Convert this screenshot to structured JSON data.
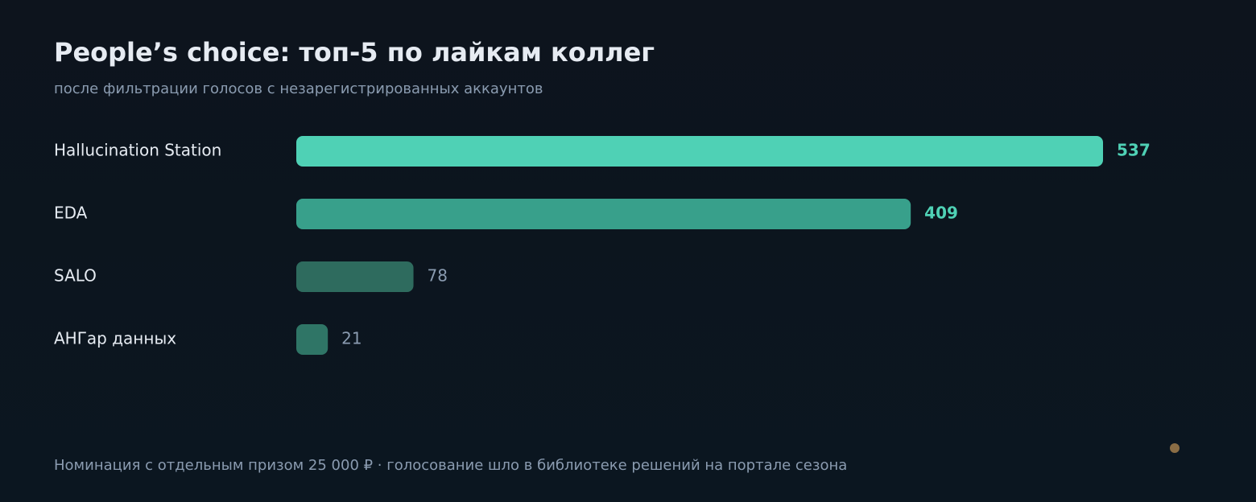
{
  "chart_data": {
    "type": "bar",
    "orientation": "horizontal",
    "title": "People’s choice: топ-5 по лайкам коллег",
    "subtitle": "после фильтрации голосов с незарегистрированных аккаунтов",
    "footnote": "Номинация с отдельным призом 25 000 ₽ · голосование шло в библиотеке решений на портале сезона",
    "categories": [
      "Hallucination Station",
      "EDA",
      "SALO",
      "АНГар данных"
    ],
    "values": [
      537,
      409,
      78,
      21
    ],
    "colors": [
      "#4fd1b5",
      "#38a08b",
      "#2e6b5e",
      "#2f7566"
    ],
    "label_colors": [
      "#4fd1b5",
      "#4fd1b5",
      "#8a9bb0",
      "#8a9bb0"
    ],
    "xlim": [
      0,
      537
    ]
  }
}
